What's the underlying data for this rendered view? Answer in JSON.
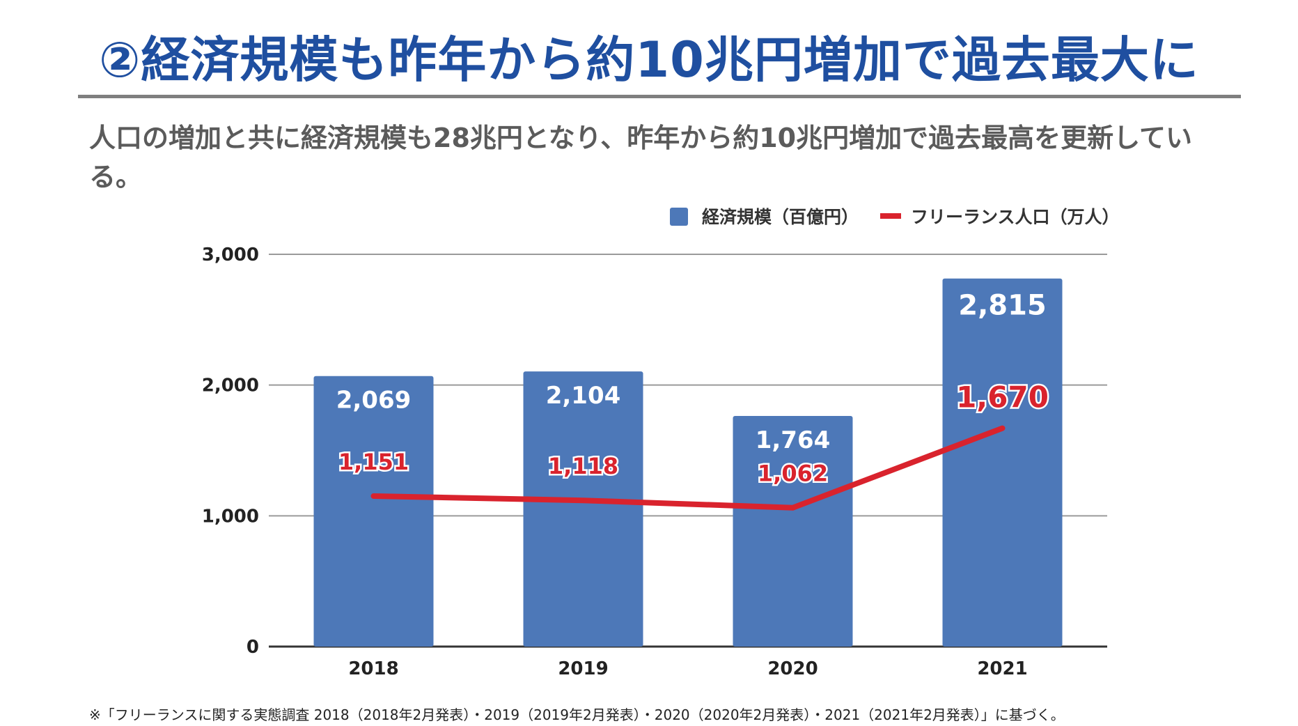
{
  "header": {
    "title": "②経済規模も昨年から約10兆円増加で過去最大に",
    "subtitle": "人口の増加と共に経済規模も28兆円となり、昨年から約10兆円増加で過去最高を更新している。"
  },
  "footnote": "※「フリーランスに関する実態調査 2018（2018年2月発表）・2019（2019年2月発表）・2020（2020年2月発表）・2021（2021年2月発表）」に基づく。",
  "colors": {
    "bar": "#4d78b8",
    "line": "#d9232d",
    "title": "#1f4fa0"
  },
  "chart_data": {
    "type": "bar",
    "categories": [
      "2018",
      "2019",
      "2020",
      "2021"
    ],
    "series": [
      {
        "name": "経済規模（百億円）",
        "type": "bar",
        "values": [
          2069,
          2104,
          1764,
          2815
        ],
        "labels": [
          "2,069",
          "2,104",
          "1,764",
          "2,815"
        ]
      },
      {
        "name": "フリーランス人口（万人）",
        "type": "line",
        "values": [
          1151,
          1118,
          1062,
          1670
        ],
        "labels": [
          "1,151",
          "1,118",
          "1,062",
          "1,670"
        ]
      }
    ],
    "yticks": [
      "0",
      "1,000",
      "2,000",
      "3,000"
    ],
    "ylim": [
      0,
      3000
    ],
    "grid": true,
    "legend": "top-right"
  }
}
